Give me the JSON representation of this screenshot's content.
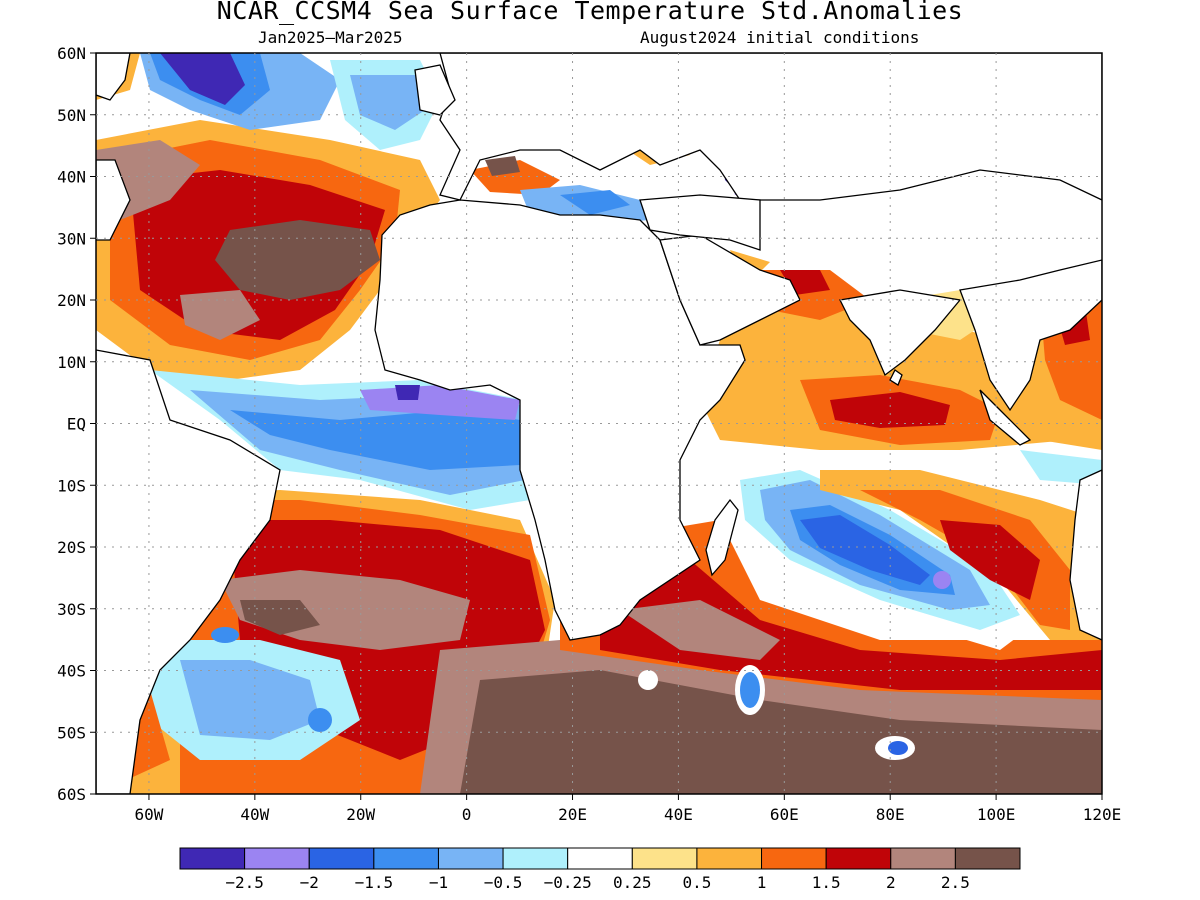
{
  "header": {
    "title": "NCAR_CCSM4 Sea Surface Temperature Std.Anomalies",
    "period": "Jan2025–Mar2025",
    "initial": "August2024 initial conditions"
  },
  "map": {
    "lat_labels": [
      "60N",
      "50N",
      "40N",
      "30N",
      "20N",
      "10N",
      "EQ",
      "10S",
      "20S",
      "30S",
      "40S",
      "50S",
      "60S"
    ],
    "lon_labels": [
      "60W",
      "40W",
      "20W",
      "0",
      "20E",
      "40E",
      "60E",
      "80E",
      "100E",
      "120E"
    ]
  },
  "legend": {
    "colors": [
      "#3f28b4",
      "#9b84f2",
      "#2a64e4",
      "#3c8ef0",
      "#78b4f5",
      "#aff0fc",
      "#ffffff",
      "#fde28a",
      "#fcb33c",
      "#f76710",
      "#c00408",
      "#b2857c",
      "#76534a"
    ],
    "labels": [
      "−2.5",
      "−2",
      "−1.5",
      "−1",
      "−0.5",
      "−0.25",
      "0.25",
      "0.5",
      "1",
      "1.5",
      "2",
      "2.5"
    ]
  }
}
